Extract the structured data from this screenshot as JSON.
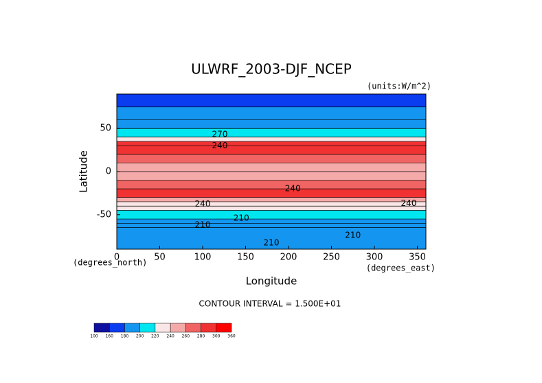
{
  "chart_data": {
    "type": "contour",
    "title": "ULWRF_2003-DJF_NCEP",
    "units_label": "(units:W/m^2)",
    "x_label": "Longitude",
    "y_label": "Latitude",
    "x_unit_label": "(degrees_east)",
    "y_unit_label": "(degrees_north)",
    "footer": "CONTOUR INTERVAL = 1.500E+01",
    "xlim": [
      0,
      360
    ],
    "ylim": [
      -90,
      90
    ],
    "xticks": [
      0,
      50,
      100,
      150,
      200,
      250,
      300,
      350
    ],
    "yticks": [
      -50,
      0,
      50
    ],
    "lat_bins": [
      90,
      75,
      60,
      50,
      40,
      35,
      30,
      20,
      10,
      0,
      -10,
      -20,
      -30,
      -35,
      -40,
      -45,
      -55,
      -60,
      -65,
      -90
    ],
    "values": [
      175,
      185,
      195,
      210,
      230,
      285,
      285,
      265,
      245,
      245,
      275,
      285,
      255,
      235,
      225,
      210,
      195,
      190,
      185
    ],
    "levels": [
      100,
      160,
      180,
      200,
      220,
      240,
      260,
      280,
      300,
      360
    ],
    "colors": [
      "#1010a0",
      "#0a3cf0",
      "#1496f0",
      "#00e6f0",
      "#fae6e6",
      "#f5aaaa",
      "#f06464",
      "#f03232",
      "#ff0000"
    ],
    "annotations": [
      {
        "text": "240",
        "x": 120,
        "y": 30
      },
      {
        "text": "270",
        "x": 120,
        "y": 43
      },
      {
        "text": "240",
        "x": 205,
        "y": -20
      },
      {
        "text": "240",
        "x": 100,
        "y": -38
      },
      {
        "text": "210",
        "x": 145,
        "y": -54
      },
      {
        "text": "210",
        "x": 100,
        "y": -62
      },
      {
        "text": "240",
        "x": 340,
        "y": -37
      },
      {
        "text": "210",
        "x": 275,
        "y": -74
      },
      {
        "text": "210",
        "x": 180,
        "y": -83
      }
    ]
  }
}
